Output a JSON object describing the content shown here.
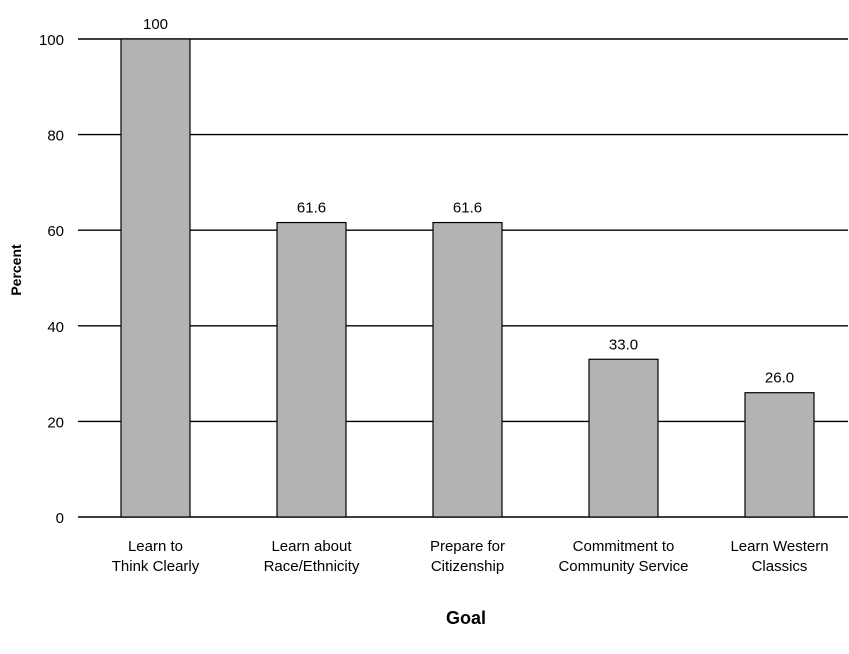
{
  "chart_data": {
    "type": "bar",
    "title": "",
    "xlabel": "Goal",
    "ylabel": "Percent",
    "ylim": [
      0,
      100
    ],
    "yticks": [
      0,
      20,
      40,
      60,
      80,
      100
    ],
    "grid": true,
    "categories": [
      [
        "Learn to",
        "Think Clearly"
      ],
      [
        "Learn about",
        "Race/Ethnicity"
      ],
      [
        "Prepare for",
        "Citizenship"
      ],
      [
        "Commitment to",
        "Community Service"
      ],
      [
        "Learn Western",
        "Classics"
      ]
    ],
    "values": [
      100,
      61.6,
      61.6,
      33.0,
      26.0
    ],
    "value_labels": [
      "100",
      "61.6",
      "61.6",
      "33.0",
      "26.0"
    ],
    "colors": {
      "bar_fill": "#b3b3b3",
      "bar_stroke": "#000000",
      "grid": "#000000"
    }
  }
}
